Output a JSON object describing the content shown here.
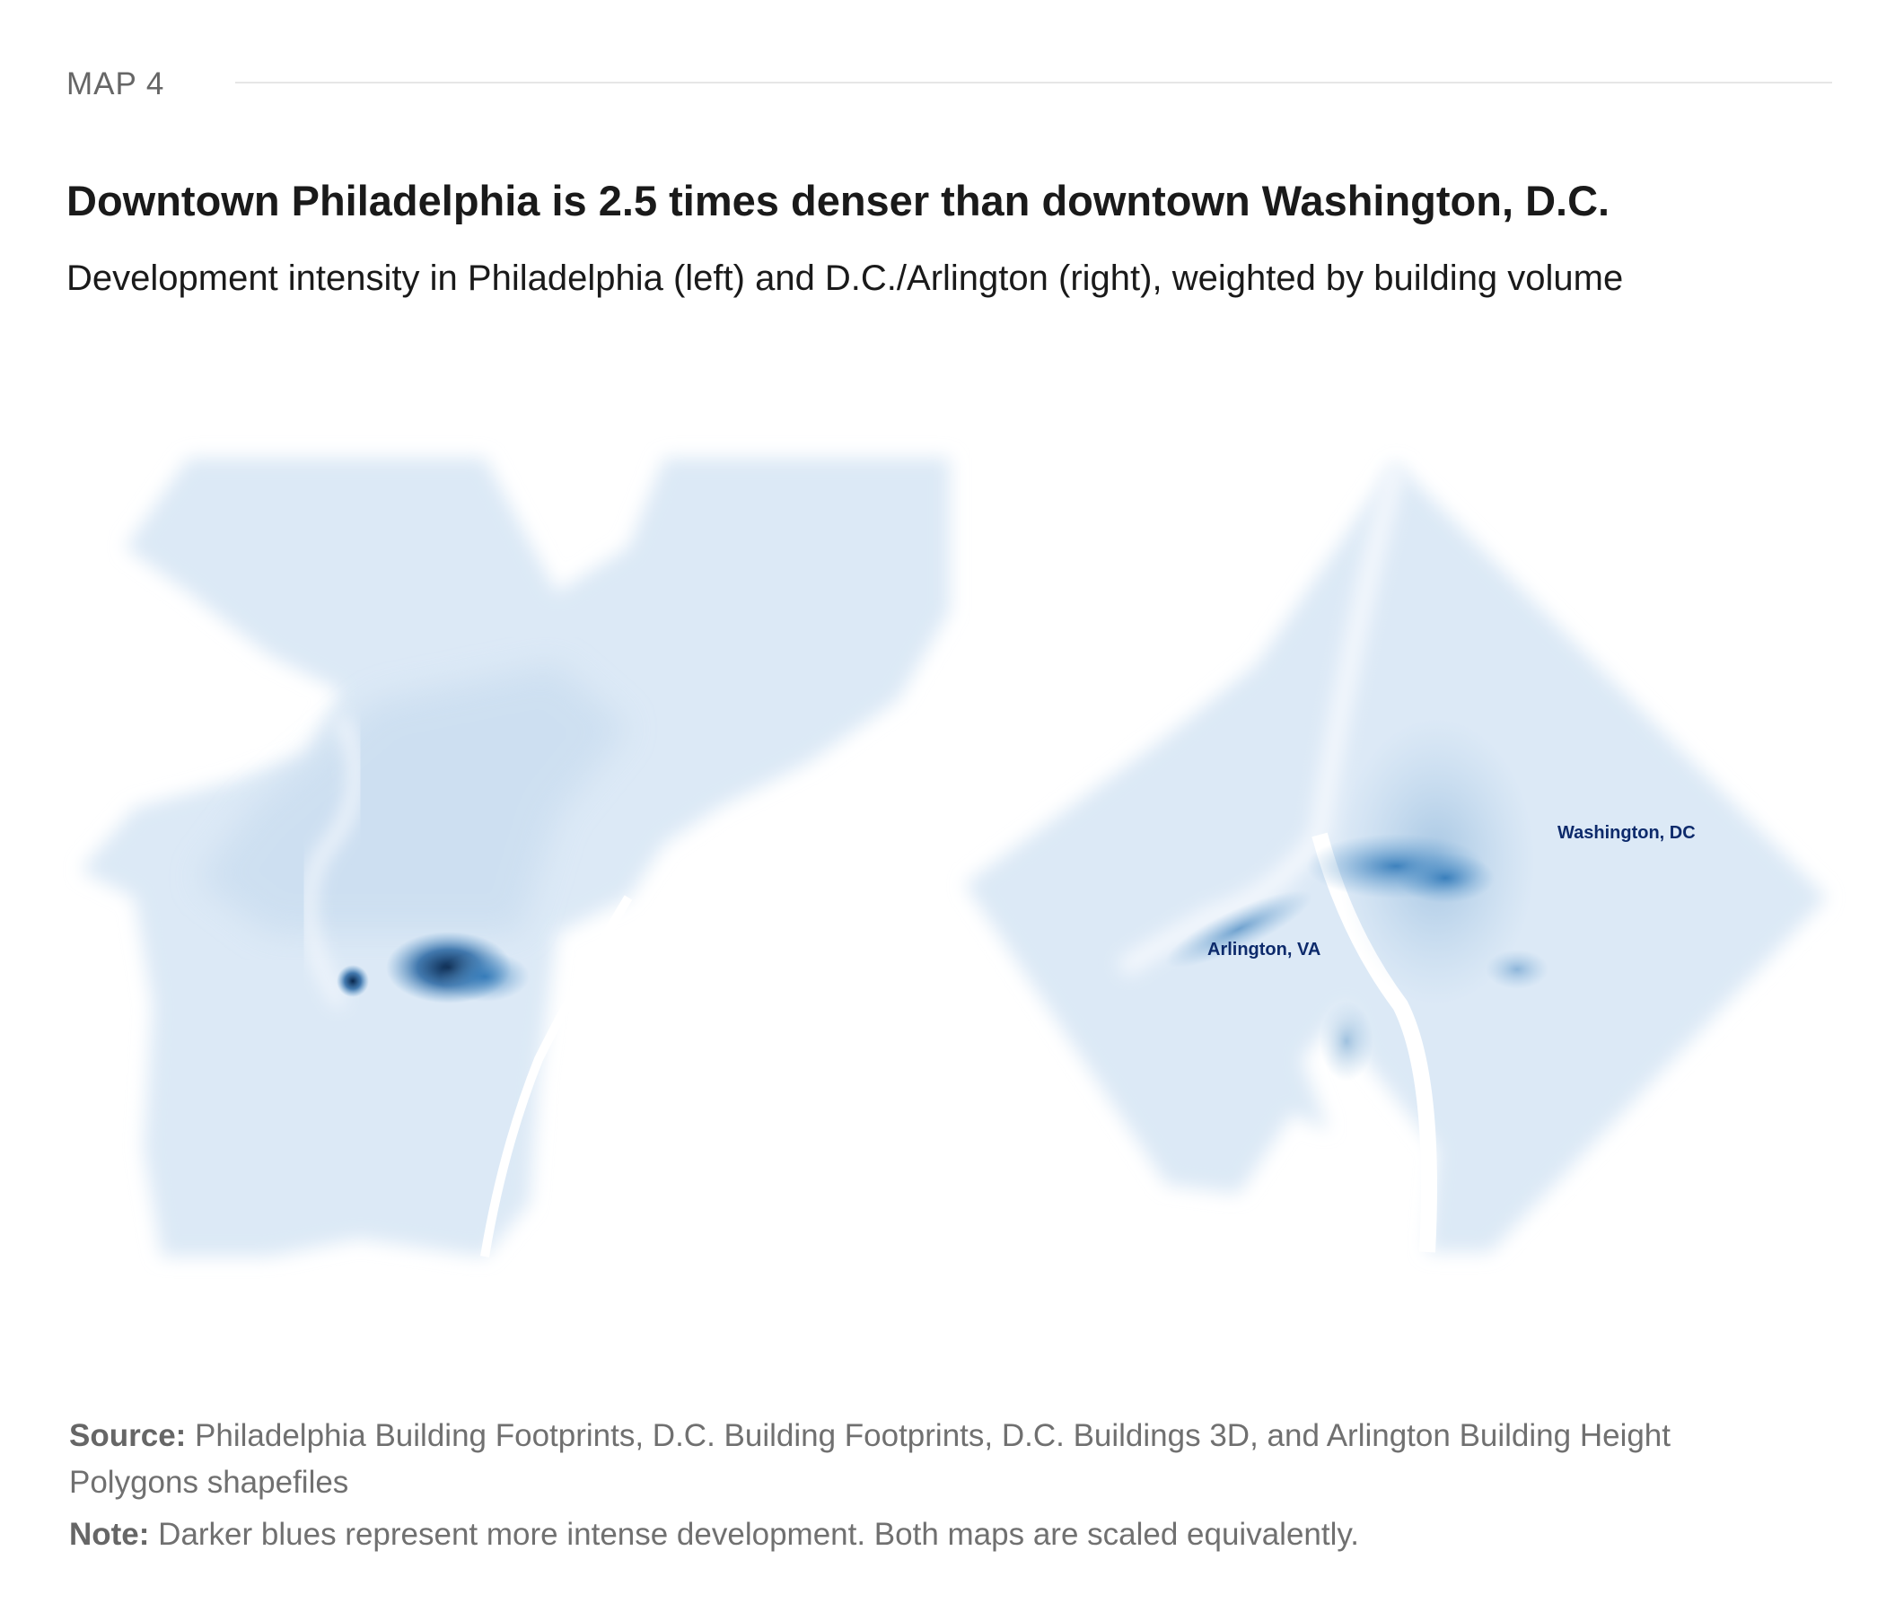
{
  "header": {
    "eyebrow": "MAP 4",
    "title": "Downtown Philadelphia is 2.5 times denser than downtown Washington, D.C.",
    "subtitle": "Development intensity in Philadelphia (left) and D.C./Arlington (right), weighted by building volume"
  },
  "map": {
    "labels": {
      "washington": "Washington, DC",
      "arlington": "Arlington, VA"
    },
    "colors": {
      "low": "#dbe8f5",
      "mid": "#4a8cc4",
      "high": "#08254a"
    }
  },
  "footer": {
    "source_label": "Source:",
    "source_text": " Philadelphia Building Footprints, D.C. Building Footprints, D.C. Buildings 3D, and Arlington Building Height Polygons shapefiles",
    "note_label": "Note:",
    "note_text": " Darker blues represent more intense development. Both maps are scaled equivalently."
  }
}
